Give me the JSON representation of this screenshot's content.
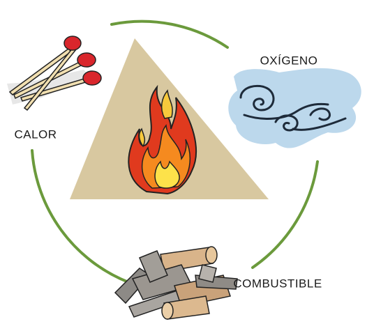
{
  "nodes": [
    {
      "label": "OXÍGENO"
    },
    {
      "label": "CALOR"
    },
    {
      "label": "COMBUSTIBLE"
    }
  ]
}
